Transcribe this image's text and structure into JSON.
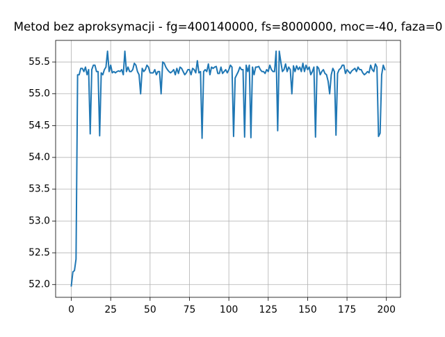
{
  "chart_data": {
    "type": "line",
    "title": "Metod bez aproksymacji - fg=400140000, fs=8000000, moc=-40, faza=0",
    "x": [
      0,
      1,
      2,
      3,
      4,
      5,
      6,
      7,
      8,
      9,
      10,
      11,
      12,
      13,
      14,
      15,
      16,
      17,
      18,
      19,
      20,
      21,
      22,
      23,
      24,
      25,
      26,
      27,
      28,
      29,
      30,
      31,
      32,
      33,
      34,
      35,
      36,
      37,
      38,
      39,
      40,
      41,
      42,
      43,
      44,
      45,
      46,
      47,
      48,
      49,
      50,
      51,
      52,
      53,
      54,
      55,
      56,
      57,
      58,
      59,
      60,
      61,
      62,
      63,
      64,
      65,
      66,
      67,
      68,
      69,
      70,
      71,
      72,
      73,
      74,
      75,
      76,
      77,
      78,
      79,
      80,
      81,
      82,
      83,
      84,
      85,
      86,
      87,
      88,
      89,
      90,
      91,
      92,
      93,
      94,
      95,
      96,
      97,
      98,
      99,
      100,
      101,
      102,
      103,
      104,
      105,
      106,
      107,
      108,
      109,
      110,
      111,
      112,
      113,
      114,
      115,
      116,
      117,
      118,
      119,
      120,
      121,
      122,
      123,
      124,
      125,
      126,
      127,
      128,
      129,
      130,
      131,
      132,
      133,
      134,
      135,
      136,
      137,
      138,
      139,
      140,
      141,
      142,
      143,
      144,
      145,
      146,
      147,
      148,
      149,
      150,
      151,
      152,
      153,
      154,
      155,
      156,
      157,
      158,
      159,
      160,
      161,
      162,
      163,
      164,
      165,
      166,
      167,
      168,
      169,
      170,
      171,
      172,
      173,
      174,
      175,
      176,
      177,
      178,
      179,
      180,
      181,
      182,
      183,
      184,
      185,
      186,
      187,
      188,
      189,
      190,
      191,
      192,
      193,
      194,
      195,
      196,
      197,
      198,
      199
    ],
    "series": [
      {
        "color": "#1f77b4",
        "values": [
          51.98,
          52.2,
          52.22,
          52.4,
          55.3,
          55.3,
          55.4,
          55.4,
          55.35,
          55.42,
          55.3,
          55.38,
          54.37,
          55.38,
          55.45,
          55.45,
          55.35,
          55.35,
          54.34,
          55.33,
          55.3,
          55.38,
          55.42,
          55.67,
          55.35,
          55.45,
          55.33,
          55.35,
          55.33,
          55.35,
          55.36,
          55.35,
          55.38,
          55.3,
          55.67,
          55.35,
          55.42,
          55.35,
          55.35,
          55.38,
          55.48,
          55.45,
          55.35,
          55.3,
          55.0,
          55.4,
          55.35,
          55.38,
          55.45,
          55.42,
          55.33,
          55.33,
          55.33,
          55.38,
          55.3,
          55.35,
          55.35,
          55.0,
          55.5,
          55.48,
          55.42,
          55.38,
          55.35,
          55.33,
          55.35,
          55.38,
          55.3,
          55.4,
          55.32,
          55.42,
          55.4,
          55.35,
          55.3,
          55.33,
          55.38,
          55.38,
          55.3,
          55.4,
          55.38,
          55.33,
          55.52,
          55.33,
          55.35,
          54.3,
          55.35,
          55.38,
          55.35,
          55.47,
          55.3,
          55.42,
          55.4,
          55.42,
          55.43,
          55.32,
          55.32,
          55.42,
          55.32,
          55.35,
          55.38,
          55.33,
          55.38,
          55.45,
          55.42,
          54.33,
          55.25,
          55.3,
          55.35,
          55.42,
          55.38,
          55.38,
          54.32,
          55.45,
          55.35,
          55.45,
          54.31,
          55.42,
          55.3,
          55.42,
          55.42,
          55.43,
          55.38,
          55.35,
          55.35,
          55.32,
          55.38,
          55.35,
          55.45,
          55.38,
          55.35,
          55.35,
          55.67,
          54.42,
          55.67,
          55.5,
          55.35,
          55.38,
          55.47,
          55.35,
          55.42,
          55.38,
          55.0,
          55.44,
          55.35,
          55.44,
          55.38,
          55.42,
          55.35,
          55.48,
          55.35,
          55.45,
          55.38,
          55.42,
          55.3,
          55.35,
          55.42,
          54.32,
          55.43,
          55.4,
          55.3,
          55.35,
          55.38,
          55.32,
          55.3,
          55.2,
          55.0,
          55.3,
          55.4,
          55.35,
          54.35,
          55.32,
          55.38,
          55.4,
          55.45,
          55.45,
          55.32,
          55.38,
          55.35,
          55.32,
          55.36,
          55.38,
          55.4,
          55.35,
          55.42,
          55.38,
          55.38,
          55.33,
          55.3,
          55.32,
          55.35,
          55.33,
          55.45,
          55.38,
          55.35,
          55.47,
          55.42,
          54.33,
          54.38,
          55.3,
          55.45,
          55.38
        ]
      }
    ],
    "xlim": [
      -9.95,
      208.95
    ],
    "ylim": [
      51.8,
      55.84
    ],
    "xticks": [
      0,
      25,
      50,
      75,
      100,
      125,
      150,
      175,
      200
    ],
    "yticks": [
      {
        "value": 52,
        "label": "52.0"
      },
      52.5,
      {
        "value": 53,
        "label": "53.0"
      },
      53.5,
      {
        "value": 54,
        "label": "54.0"
      },
      54.5,
      {
        "value": 55,
        "label": "55.0"
      },
      55.5
    ],
    "grid": true
  }
}
